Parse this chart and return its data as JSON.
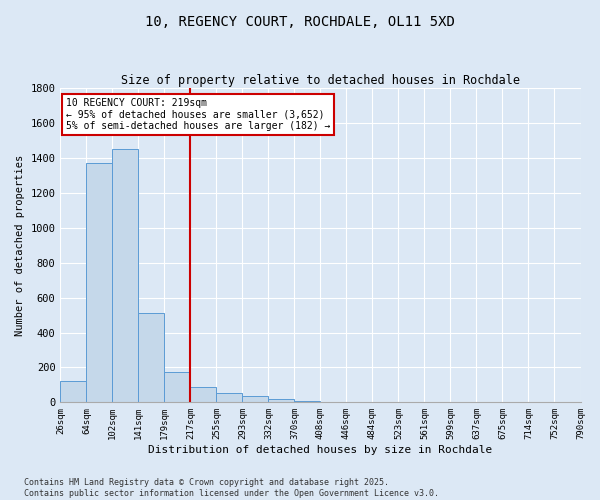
{
  "title": "10, REGENCY COURT, ROCHDALE, OL11 5XD",
  "subtitle": "Size of property relative to detached houses in Rochdale",
  "xlabel": "Distribution of detached houses by size in Rochdale",
  "ylabel": "Number of detached properties",
  "bar_values": [
    120,
    1370,
    1450,
    510,
    175,
    85,
    55,
    35,
    20,
    5,
    0,
    0,
    0,
    0,
    0,
    0,
    0,
    0,
    0,
    0
  ],
  "bar_labels": [
    "26sqm",
    "64sqm",
    "102sqm",
    "141sqm",
    "179sqm",
    "217sqm",
    "255sqm",
    "293sqm",
    "332sqm",
    "370sqm",
    "408sqm",
    "446sqm",
    "484sqm",
    "523sqm",
    "561sqm",
    "599sqm",
    "637sqm",
    "675sqm",
    "714sqm",
    "752sqm",
    "790sqm"
  ],
  "bar_color": "#c5d8ea",
  "bar_edge_color": "#5b9bd5",
  "vline_x_index": 5,
  "vline_color": "#cc0000",
  "annotation_line1": "10 REGENCY COURT: 219sqm",
  "annotation_line2": "← 95% of detached houses are smaller (3,652)",
  "annotation_line3": "5% of semi-detached houses are larger (182) →",
  "annotation_box_color": "#cc0000",
  "ylim": [
    0,
    1800
  ],
  "yticks": [
    0,
    200,
    400,
    600,
    800,
    1000,
    1200,
    1400,
    1600,
    1800
  ],
  "footer_text": "Contains HM Land Registry data © Crown copyright and database right 2025.\nContains public sector information licensed under the Open Government Licence v3.0.",
  "bg_color": "#dce8f5",
  "plot_bg_color": "#dce8f5",
  "grid_color": "#ffffff"
}
